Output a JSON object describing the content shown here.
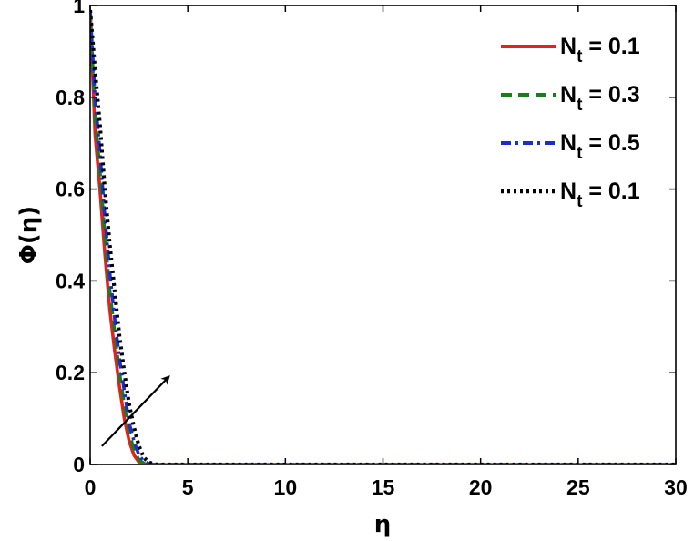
{
  "chart_data": {
    "type": "line",
    "title": "",
    "xlabel": "η",
    "ylabel": "Φ(η)",
    "xlim": [
      0,
      30
    ],
    "ylim": [
      0,
      1
    ],
    "xticks": [
      0,
      5,
      10,
      15,
      20,
      25,
      30
    ],
    "yticks": [
      0,
      0.2,
      0.4,
      0.6,
      0.8,
      1
    ],
    "xtick_labels": [
      "0",
      "5",
      "10",
      "15",
      "20",
      "25",
      "30"
    ],
    "ytick_labels": [
      "0",
      "0.2",
      "0.4",
      "0.6",
      "0.8",
      "1"
    ],
    "grid": false,
    "legend_position": "top-right",
    "series": [
      {
        "name_symbol": "N",
        "name_subscript": "t",
        "name_value": " = 0.1",
        "color": "#e8201a",
        "dash": "solid",
        "x": [
          0,
          0.25,
          0.5,
          0.75,
          1.0,
          1.25,
          1.5,
          1.75,
          2.0,
          2.25,
          2.5,
          2.75,
          3.0,
          4.0,
          6.0,
          10.0,
          15.0,
          20.0,
          25.0,
          30.0
        ],
        "y": [
          0.99,
          0.72,
          0.6,
          0.46,
          0.34,
          0.25,
          0.17,
          0.1,
          0.05,
          0.02,
          0.005,
          0.001,
          0.0,
          0.0,
          0.0,
          0.0,
          0.0,
          0.0,
          0.0,
          0.0
        ]
      },
      {
        "name_symbol": "N",
        "name_subscript": "t",
        "name_value": " = 0.3",
        "color": "#1f7a1f",
        "dash": "dashed",
        "x": [
          0,
          0.25,
          0.5,
          0.75,
          1.0,
          1.25,
          1.5,
          1.75,
          2.0,
          2.25,
          2.5,
          2.75,
          3.0,
          3.25,
          4.0,
          6.0,
          10.0,
          15.0,
          20.0,
          25.0,
          30.0
        ],
        "y": [
          0.99,
          0.76,
          0.64,
          0.5,
          0.38,
          0.29,
          0.2,
          0.13,
          0.07,
          0.03,
          0.01,
          0.003,
          0.001,
          0.0,
          0.0,
          0.0,
          0.0,
          0.0,
          0.0,
          0.0,
          0.0
        ]
      },
      {
        "name_symbol": "N",
        "name_subscript": "t",
        "name_value": " = 0.5",
        "color": "#1a2ecc",
        "dash": "dashdot",
        "x": [
          0,
          0.25,
          0.5,
          0.75,
          1.0,
          1.25,
          1.5,
          1.75,
          2.0,
          2.25,
          2.5,
          2.75,
          3.0,
          3.25,
          3.5,
          4.0,
          6.0,
          10.0,
          15.0,
          20.0,
          25.0,
          30.0
        ],
        "y": [
          0.99,
          0.8,
          0.68,
          0.54,
          0.42,
          0.32,
          0.23,
          0.16,
          0.09,
          0.05,
          0.02,
          0.007,
          0.002,
          0.0,
          0.0,
          0.0,
          0.0,
          0.0,
          0.0,
          0.0,
          0.0,
          0.0
        ]
      },
      {
        "name_symbol": "N",
        "name_subscript": "t",
        "name_value": " = 0.1",
        "color": "#000000",
        "dash": "dotted",
        "x": [
          0,
          0.25,
          0.5,
          0.75,
          1.0,
          1.25,
          1.5,
          1.75,
          2.0,
          2.25,
          2.5,
          2.75,
          3.0,
          3.25,
          3.5,
          3.75,
          4.0,
          6.0,
          10.0,
          15.0,
          20.0,
          25.0,
          30.0
        ],
        "y": [
          0.99,
          0.86,
          0.74,
          0.6,
          0.48,
          0.38,
          0.28,
          0.2,
          0.13,
          0.08,
          0.04,
          0.015,
          0.005,
          0.001,
          0.0,
          0.0,
          0.0,
          0.0,
          0.0,
          0.0,
          0.0,
          0.0,
          0.0
        ]
      }
    ],
    "annotations": [
      {
        "type": "arrow",
        "from": [
          0.6,
          0.04
        ],
        "to": [
          4.0,
          0.19
        ],
        "color": "#000000"
      }
    ]
  }
}
